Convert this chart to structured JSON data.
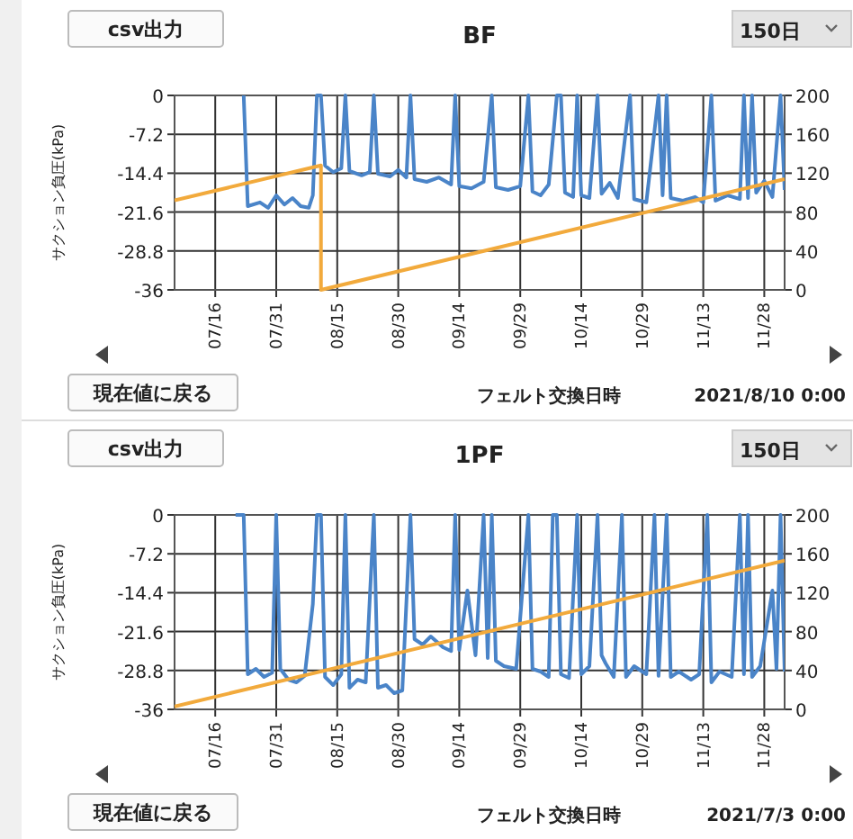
{
  "chart_data": [
    {
      "type": "line",
      "title": "BF",
      "ylabel": "サクション負圧(kPa)",
      "annotations": [
        "csv出力",
        "150日",
        "現在値に戻る",
        "フェルト交換日時",
        "2021/8/10 0:00"
      ],
      "xlim": [
        "--07-06",
        "--12-03"
      ],
      "xticks": [
        {
          "value": "--07-16",
          "label": "07/16"
        },
        {
          "value": "--07-31",
          "label": "07/31"
        },
        {
          "value": "--08-15",
          "label": "08/15"
        },
        {
          "value": "--08-30",
          "label": "08/30"
        },
        {
          "value": "--09-14",
          "label": "09/14"
        },
        {
          "value": "--09-29",
          "label": "09/29"
        },
        {
          "value": "--10-14",
          "label": "10/14"
        },
        {
          "value": "--10-29",
          "label": "10/29"
        },
        {
          "value": "--11-13",
          "label": "11/13"
        },
        {
          "value": "--11-28",
          "label": "11/28"
        }
      ],
      "ylim": [
        -36,
        0
      ],
      "yticks": [
        0,
        -7.2,
        -14.4,
        -21.6,
        -28.8,
        -36
      ],
      "y2lim": [
        0,
        200
      ],
      "y2ticks": [
        0,
        40,
        80,
        120,
        160,
        200
      ],
      "grid": true,
      "series": [
        {
          "color": "#4a84c8",
          "x": [
            "--07-23",
            "--07-24",
            "--07-27",
            "--07-29",
            "--07-31",
            "--08-02",
            "--08-04",
            "--08-06",
            "--08-08",
            "--08-09",
            "--08-10",
            "--08-11",
            "--08-12",
            "--08-14",
            "--08-16",
            "--08-17",
            "--08-18",
            "--08-21",
            "--08-23",
            "--08-24",
            "--08-25",
            "--08-28",
            "--08-30",
            "--09-01",
            "--09-02",
            "--09-03",
            "--09-06",
            "--09-09",
            "--09-12",
            "--09-13",
            "--09-14",
            "--09-17",
            "--09-20",
            "--09-22",
            "--09-23",
            "--09-26",
            "--09-29",
            "--10-01",
            "--10-02",
            "--10-04",
            "--10-06",
            "--10-08",
            "--10-09",
            "--10-10",
            "--10-12",
            "--10-13",
            "--10-14",
            "--10-16",
            "--10-18",
            "--10-19",
            "--10-21",
            "--10-23",
            "--10-26",
            "--10-27",
            "--10-30",
            "--11-02",
            "--11-03",
            "--11-04",
            "--11-05",
            "--11-08",
            "--11-11",
            "--11-13",
            "--11-15",
            "--11-16",
            "--11-19",
            "--11-22",
            "--11-23",
            "--11-24",
            "--11-25",
            "--11-26",
            "--11-28",
            "--11-30",
            "--12-02",
            "--12-03"
          ],
          "values": [
            0,
            -20.5,
            -19.8,
            -20.8,
            -18.5,
            -20.2,
            -19,
            -20.5,
            -20.8,
            -18.5,
            0,
            0,
            -13,
            -14.2,
            -13.5,
            0,
            -14,
            -14.8,
            -14.2,
            0,
            -14.5,
            -15,
            -13.8,
            -15.2,
            0,
            -15.5,
            -16,
            -15.2,
            -16.5,
            0,
            -16.8,
            -17.2,
            -16,
            0,
            -17,
            -17.5,
            -16.8,
            0,
            -17.8,
            -18.5,
            -16.5,
            0,
            0,
            -18,
            -18.8,
            0,
            -18.5,
            -19,
            0,
            -18.2,
            -16.2,
            -19,
            0,
            -19.2,
            -19.8,
            0,
            -18.5,
            0,
            -19,
            -19.5,
            -18.8,
            -19.8,
            0,
            -19.5,
            -18.5,
            -19.2,
            0,
            -19,
            0,
            -18,
            -15.8,
            -18.8,
            0,
            -17.5
          ]
        },
        {
          "color": "#f2aa3c",
          "axis": "y2",
          "x": [
            "--07-06",
            "--08-11",
            "--08-11",
            "--12-03"
          ],
          "values": [
            92,
            128,
            0,
            114
          ]
        }
      ]
    },
    {
      "type": "line",
      "title": "1PF",
      "ylabel": "サクション負圧(kPa)",
      "annotations": [
        "csv出力",
        "150日",
        "現在値に戻る",
        "フェルト交換日時",
        "2021/7/3 0:00"
      ],
      "xlim": [
        "--07-06",
        "--12-03"
      ],
      "xticks": [
        {
          "value": "--07-16",
          "label": "07/16"
        },
        {
          "value": "--07-31",
          "label": "07/31"
        },
        {
          "value": "--08-15",
          "label": "08/15"
        },
        {
          "value": "--08-30",
          "label": "08/30"
        },
        {
          "value": "--09-14",
          "label": "09/14"
        },
        {
          "value": "--09-29",
          "label": "09/29"
        },
        {
          "value": "--10-14",
          "label": "10/14"
        },
        {
          "value": "--10-29",
          "label": "10/29"
        },
        {
          "value": "--11-13",
          "label": "11/13"
        },
        {
          "value": "--11-28",
          "label": "11/28"
        }
      ],
      "ylim": [
        -36,
        0
      ],
      "yticks": [
        0,
        -7.2,
        -14.4,
        -21.6,
        -28.8,
        -36
      ],
      "y2lim": [
        0,
        200
      ],
      "y2ticks": [
        0,
        40,
        80,
        120,
        160,
        200
      ],
      "grid": true,
      "series": [
        {
          "color": "#4a84c8",
          "x": [
            "--07-21",
            "--07-22",
            "--07-23",
            "--07-24",
            "--07-26",
            "--07-28",
            "--07-30",
            "--07-31",
            "--08-01",
            "--08-03",
            "--08-05",
            "--08-07",
            "--08-09",
            "--08-10",
            "--08-11",
            "--08-12",
            "--08-14",
            "--08-16",
            "--08-17",
            "--08-18",
            "--08-20",
            "--08-22",
            "--08-24",
            "--08-25",
            "--08-27",
            "--08-29",
            "--08-31",
            "--09-02",
            "--09-03",
            "--09-05",
            "--09-07",
            "--09-10",
            "--09-12",
            "--09-13",
            "--09-14",
            "--09-16",
            "--09-18",
            "--09-20",
            "--09-21",
            "--09-22",
            "--09-23",
            "--09-25",
            "--09-28",
            "--10-01",
            "--10-02",
            "--10-04",
            "--10-06",
            "--10-07",
            "--10-08",
            "--10-09",
            "--10-11",
            "--10-13",
            "--10-14",
            "--10-16",
            "--10-18",
            "--10-19",
            "--10-20",
            "--10-22",
            "--10-24",
            "--10-25",
            "--10-27",
            "--10-30",
            "--11-01",
            "--11-02",
            "--11-04",
            "--11-05",
            "--11-07",
            "--11-10",
            "--11-12",
            "--11-14",
            "--11-15",
            "--11-17",
            "--11-20",
            "--11-22",
            "--11-23",
            "--11-24",
            "--11-25",
            "--11-27",
            "--11-30",
            "--12-01",
            "--12-02",
            "--12-03"
          ],
          "values": [
            0,
            0,
            0,
            -29.5,
            -28.5,
            -30,
            -29.2,
            0,
            -28.5,
            -30.5,
            -31,
            -29.8,
            -16.5,
            0,
            0,
            -30,
            -31.5,
            -29.5,
            0,
            -32,
            -30.5,
            -31,
            0,
            -32,
            -31.5,
            -33,
            -32.5,
            0,
            -23,
            -24,
            -22.5,
            -24.5,
            -25.2,
            0,
            -25,
            -14,
            -26,
            0,
            -26.5,
            0,
            -27,
            -28,
            -28.5,
            0,
            -28.5,
            -29,
            -30,
            0,
            0,
            -29.5,
            -30.2,
            0,
            -29.5,
            -28,
            0,
            -26,
            -27.5,
            -30,
            0,
            -30,
            -28,
            -29.5,
            0,
            -29.8,
            0,
            -30,
            -29,
            -30.5,
            -29.5,
            0,
            -31,
            -29,
            -30,
            0,
            -29.5,
            0,
            -30,
            -28,
            -14,
            -28.5,
            0,
            -29
          ]
        },
        {
          "color": "#f2aa3c",
          "axis": "y2",
          "x": [
            "--07-06",
            "--12-03"
          ],
          "values": [
            3,
            153
          ]
        }
      ]
    }
  ]
}
